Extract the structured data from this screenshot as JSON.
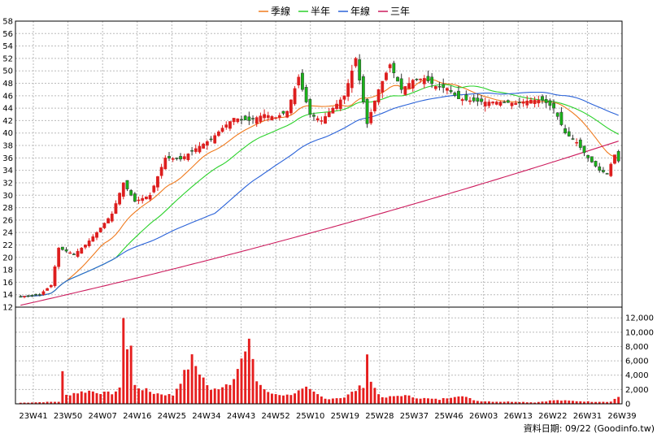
{
  "chart_data": {
    "type": "candlestick",
    "legend": {
      "placement": "top-center",
      "items": [
        {
          "name": "季線",
          "color": "#f07a1e"
        },
        {
          "name": "半年",
          "color": "#2ad12a"
        },
        {
          "name": "年線",
          "color": "#2a62d8"
        },
        {
          "name": "三年",
          "color": "#cc1a5c"
        }
      ]
    },
    "grid": true,
    "colors": {
      "up": "#dd1e1e",
      "down": "#19b419",
      "volume": "#e61e1e",
      "grid": "#bbbbbb"
    },
    "price_axis": {
      "position": "left",
      "range": [
        12,
        58
      ],
      "ticks": [
        12,
        14,
        16,
        18,
        20,
        22,
        24,
        26,
        28,
        30,
        32,
        34,
        36,
        38,
        40,
        42,
        44,
        46,
        48,
        50,
        52,
        54,
        56,
        58
      ]
    },
    "volume_axis": {
      "position": "right",
      "range": [
        0,
        13500
      ],
      "ticks": [
        "0",
        "2,000",
        "4,000",
        "6,000",
        "8,000",
        "10,000",
        "12,000"
      ],
      "tick_values": [
        0,
        2000,
        4000,
        6000,
        8000,
        10000,
        12000
      ]
    },
    "x_ticks": [
      "23W41",
      "23W50",
      "24W07",
      "24W16",
      "24W25",
      "24W34",
      "24W43",
      "24W52",
      "25W10",
      "25W19",
      "25W28",
      "25W37",
      "25W46",
      "26W03",
      "26W13",
      "26W22",
      "26W31",
      "26W39"
    ],
    "weeks_total": 158,
    "price_anchors": [
      [
        0,
        13.7
      ],
      [
        5,
        14
      ],
      [
        8,
        15.5
      ],
      [
        10,
        21.5
      ],
      [
        14,
        20.5
      ],
      [
        17,
        22
      ],
      [
        20,
        24
      ],
      [
        24,
        27
      ],
      [
        27,
        32
      ],
      [
        30,
        29
      ],
      [
        34,
        30
      ],
      [
        38,
        36
      ],
      [
        42,
        35.8
      ],
      [
        46,
        37.5
      ],
      [
        50,
        39
      ],
      [
        53,
        40.8
      ],
      [
        56,
        42.4
      ],
      [
        60,
        42
      ],
      [
        64,
        43
      ],
      [
        67,
        42.5
      ],
      [
        70,
        43.5
      ],
      [
        73,
        49
      ],
      [
        76,
        43
      ],
      [
        79,
        42
      ],
      [
        82,
        44
      ],
      [
        85,
        46
      ],
      [
        88,
        52
      ],
      [
        91,
        41.5
      ],
      [
        94,
        47
      ],
      [
        97,
        51
      ],
      [
        100,
        47
      ],
      [
        103,
        48.5
      ],
      [
        106,
        48.8
      ],
      [
        109,
        47.5
      ],
      [
        112,
        47.2
      ],
      [
        115,
        45.5
      ],
      [
        118,
        45.2
      ],
      [
        122,
        45
      ],
      [
        126,
        45
      ],
      [
        130,
        44.8
      ],
      [
        134,
        45.3
      ],
      [
        137,
        45.3
      ],
      [
        140,
        44
      ],
      [
        143,
        40
      ],
      [
        146,
        38.5
      ],
      [
        149,
        36
      ],
      [
        152,
        34
      ],
      [
        154,
        33.5
      ],
      [
        156,
        36.5
      ],
      [
        157,
        35.5
      ]
    ],
    "volume_anchors": [
      [
        0,
        150
      ],
      [
        10,
        300
      ],
      [
        11,
        4200
      ],
      [
        12,
        1200
      ],
      [
        14,
        1500
      ],
      [
        18,
        1800
      ],
      [
        22,
        1500
      ],
      [
        24,
        1500
      ],
      [
        26,
        2000
      ],
      [
        27,
        13200
      ],
      [
        28,
        7800
      ],
      [
        29,
        8000
      ],
      [
        30,
        2500
      ],
      [
        35,
        1500
      ],
      [
        40,
        1200
      ],
      [
        45,
        6200
      ],
      [
        50,
        1800
      ],
      [
        55,
        3000
      ],
      [
        60,
        8000
      ],
      [
        61,
        6600
      ],
      [
        62,
        3200
      ],
      [
        65,
        1500
      ],
      [
        70,
        1200
      ],
      [
        75,
        2100
      ],
      [
        80,
        700
      ],
      [
        85,
        900
      ],
      [
        90,
        2600
      ],
      [
        91,
        7200
      ],
      [
        92,
        3000
      ],
      [
        95,
        800
      ],
      [
        100,
        1200
      ],
      [
        105,
        800
      ],
      [
        110,
        600
      ],
      [
        115,
        1200
      ],
      [
        120,
        400
      ],
      [
        125,
        300
      ],
      [
        130,
        300
      ],
      [
        135,
        200
      ],
      [
        140,
        500
      ],
      [
        145,
        400
      ],
      [
        150,
        300
      ],
      [
        155,
        300
      ],
      [
        156,
        700
      ],
      [
        157,
        1000
      ]
    ],
    "ma_periods": {
      "季線": 13,
      "半年": 26,
      "年線": 52,
      "三年": 156
    },
    "three_year_start": 12.3,
    "footer": "資料日期: 09/22   (Goodinfo.tw)"
  }
}
